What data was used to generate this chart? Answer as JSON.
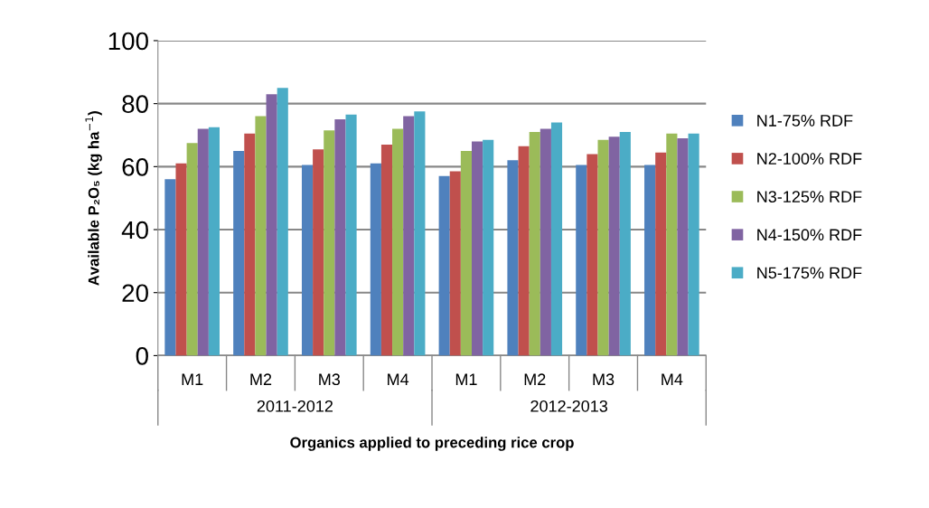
{
  "chart_data": {
    "type": "bar",
    "categories": [
      "M1",
      "M2",
      "M3",
      "M4",
      "M1",
      "M2",
      "M3",
      "M4"
    ],
    "annotations": [
      "2011-2012",
      "2012-2013"
    ],
    "xlabel": "Organics applied to preceding rice crop",
    "ylabel": "Available P₂O₅ (kg ha$^{−1}$)",
    "ylim": [
      0,
      100
    ],
    "yticks": [
      0,
      20,
      40,
      60,
      80,
      100
    ],
    "grid": "y",
    "legend": "right",
    "series": [
      {
        "name": "N1-75% RDF",
        "color": "#4f81bd",
        "values": [
          56,
          65,
          60.5,
          61,
          57,
          62,
          60.5,
          60.5
        ]
      },
      {
        "name": "N2-100% RDF",
        "color": "#c0504d",
        "values": [
          61,
          70.5,
          65.5,
          67,
          58.5,
          66.5,
          64,
          64.5
        ]
      },
      {
        "name": "N3-125% RDF",
        "color": "#9bbb59",
        "values": [
          67.5,
          76,
          71.5,
          72,
          65,
          71,
          68.5,
          70.5
        ]
      },
      {
        "name": "N4-150% RDF",
        "color": "#8064a2",
        "values": [
          72,
          83,
          75,
          76,
          68,
          72,
          69.5,
          69
        ]
      },
      {
        "name": "N5-175% RDF",
        "color": "#4bacc6",
        "values": [
          72.5,
          85,
          76.5,
          77.5,
          68.5,
          74,
          71,
          70.5
        ]
      }
    ]
  }
}
